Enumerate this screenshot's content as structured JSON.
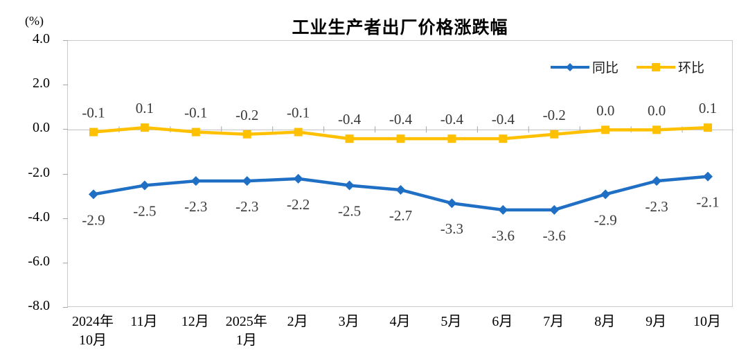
{
  "chart_data": {
    "type": "line",
    "title": "工业生产者出厂价格涨跌幅",
    "unit_label": "(%)",
    "categories": [
      [
        "2024年",
        "10月"
      ],
      [
        "11月"
      ],
      [
        "12月"
      ],
      [
        "2025年",
        "1月"
      ],
      [
        "2月"
      ],
      [
        "3月"
      ],
      [
        "4月"
      ],
      [
        "5月"
      ],
      [
        "6月"
      ],
      [
        "7月"
      ],
      [
        "8月"
      ],
      [
        "9月"
      ],
      [
        "10月"
      ]
    ],
    "series": [
      {
        "name": "同比",
        "marker": "diamond",
        "color": "#1f6fc5",
        "values": [
          -2.9,
          -2.5,
          -2.3,
          -2.3,
          -2.2,
          -2.5,
          -2.7,
          -3.3,
          -3.6,
          -3.6,
          -2.9,
          -2.3,
          -2.1
        ],
        "labels": [
          "-2.9",
          "-2.5",
          "-2.3",
          "-2.3",
          "-2.2",
          "-2.5",
          "-2.7",
          "-3.3",
          "-3.6",
          "-3.6",
          "-2.9",
          "-2.3",
          "-2.1"
        ]
      },
      {
        "name": "环比",
        "marker": "square",
        "color": "#ffc000",
        "values": [
          -0.1,
          0.1,
          -0.1,
          -0.2,
          -0.1,
          -0.4,
          -0.4,
          -0.4,
          -0.4,
          -0.2,
          0.0,
          0.0,
          0.1
        ],
        "labels": [
          "-0.1",
          "0.1",
          "-0.1",
          "-0.2",
          "-0.1",
          "-0.4",
          "-0.4",
          "-0.4",
          "-0.4",
          "-0.2",
          "0.0",
          "0.0",
          "0.1"
        ]
      }
    ],
    "ylim": [
      -8.0,
      4.0
    ],
    "yticks": [
      4.0,
      2.0,
      0.0,
      -2.0,
      -4.0,
      -6.0,
      -8.0
    ],
    "ytick_labels": [
      "4.0",
      "2.0",
      "0.0",
      "-2.0",
      "-4.0",
      "-6.0",
      "-8.0"
    ],
    "legend_position": "top-right",
    "grid": false,
    "colors": {
      "axis_line": "#bfbfbf",
      "tick_mark": "#a6a6a6",
      "plot_border": "#c9c9c9",
      "data_label": "#3a3a3a"
    }
  }
}
